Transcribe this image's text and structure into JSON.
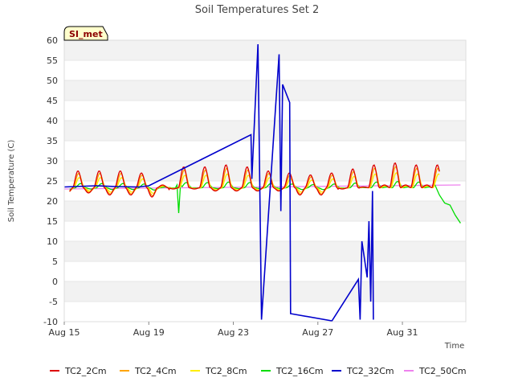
{
  "chart_data": {
    "type": "line",
    "title": "Soil Temperatures Set 2",
    "xlabel": "Time",
    "ylabel": "Soil Temperature (C)",
    "badge": "SI_met",
    "xlim": [
      "2023-08-15",
      "2023-09-03"
    ],
    "ylim": [
      -10,
      60
    ],
    "yticks": [
      -10,
      -5,
      0,
      5,
      10,
      15,
      20,
      25,
      30,
      35,
      40,
      45,
      50,
      55,
      60
    ],
    "xticks": [
      {
        "date": "2023-08-15",
        "label": "Aug 15"
      },
      {
        "date": "2023-08-19",
        "label": "Aug 19"
      },
      {
        "date": "2023-08-23",
        "label": "Aug 23"
      },
      {
        "date": "2023-08-27",
        "label": "Aug 27"
      },
      {
        "date": "2023-08-31",
        "label": "Aug 31"
      }
    ],
    "grid": "horizontal bands",
    "legend_position": "bottom",
    "daily_peaks": [
      27.5,
      27.5,
      27.5,
      27.0,
      24.0,
      28.5,
      28.5,
      29.0,
      28.5,
      27.5,
      27.0,
      26.5,
      27.0,
      28.0,
      29.0,
      29.5,
      29.0
    ],
    "daily_mins": [
      22.0,
      22.0,
      21.5,
      21.5,
      21.0,
      23.0,
      23.0,
      22.5,
      22.5,
      22.5,
      22.5,
      21.5,
      21.5,
      23.0,
      23.5,
      24.0,
      24.0
    ],
    "series": [
      {
        "name": "TC2_2Cm",
        "color": "#dd0000",
        "amp_scale": 1.0,
        "phase": 0.0
      },
      {
        "name": "TC2_4Cm",
        "color": "#ffa500",
        "amp_scale": 0.85,
        "phase": 0.03
      },
      {
        "name": "TC2_8Cm",
        "color": "#ffee00",
        "amp_scale": 0.6,
        "phase": 0.06
      },
      {
        "name": "TC2_16Cm",
        "color": "#00dd00",
        "amp_scale": 0.25,
        "phase": 0.12,
        "points": [
          [
            "2023-08-20T08:00",
            24.0
          ],
          [
            "2023-08-20T10:00",
            17.0
          ],
          [
            "2023-08-20T12:00",
            24.0
          ],
          [
            "2023-09-01T12:00",
            24.5
          ],
          [
            "2023-09-01T18:00",
            21.5
          ],
          [
            "2023-09-02T00:00",
            19.5
          ],
          [
            "2023-09-02T06:00",
            19.0
          ],
          [
            "2023-09-02T12:00",
            16.5
          ],
          [
            "2023-09-02T18:00",
            14.5
          ]
        ]
      },
      {
        "name": "TC2_32Cm",
        "color": "#0000cc",
        "points": [
          [
            "2023-08-15T00:00",
            23.5
          ],
          [
            "2023-08-16T12:00",
            23.8
          ],
          [
            "2023-08-17T12:00",
            23.6
          ],
          [
            "2023-08-18T12:00",
            23.5
          ],
          [
            "2023-08-19T00:00",
            23.8
          ],
          [
            "2023-08-23T20:00",
            36.5
          ],
          [
            "2023-08-23T21:00",
            25.5
          ],
          [
            "2023-08-24T04:00",
            59.0
          ],
          [
            "2023-08-24T08:00",
            -9.5
          ],
          [
            "2023-08-25T04:00",
            56.5
          ],
          [
            "2023-08-25T06:00",
            17.5
          ],
          [
            "2023-08-25T08:00",
            49.0
          ],
          [
            "2023-08-25T16:00",
            44.5
          ],
          [
            "2023-08-25T17:00",
            -8.0
          ],
          [
            "2023-08-27T16:00",
            -9.8
          ],
          [
            "2023-08-28T22:00",
            0.5
          ],
          [
            "2023-08-29T00:00",
            -9.5
          ],
          [
            "2023-08-29T02:00",
            10.0
          ],
          [
            "2023-08-29T08:00",
            1.0
          ],
          [
            "2023-08-29T10:00",
            15.0
          ],
          [
            "2023-08-29T12:00",
            -5.0
          ],
          [
            "2023-08-29T14:00",
            22.5
          ],
          [
            "2023-08-29T15:00",
            -9.5
          ]
        ]
      },
      {
        "name": "TC2_50Cm",
        "color": "#ee82ee",
        "points": [
          [
            "2023-08-15T00:00",
            23.0
          ],
          [
            "2023-09-02T18:00",
            24.0
          ]
        ]
      }
    ]
  }
}
